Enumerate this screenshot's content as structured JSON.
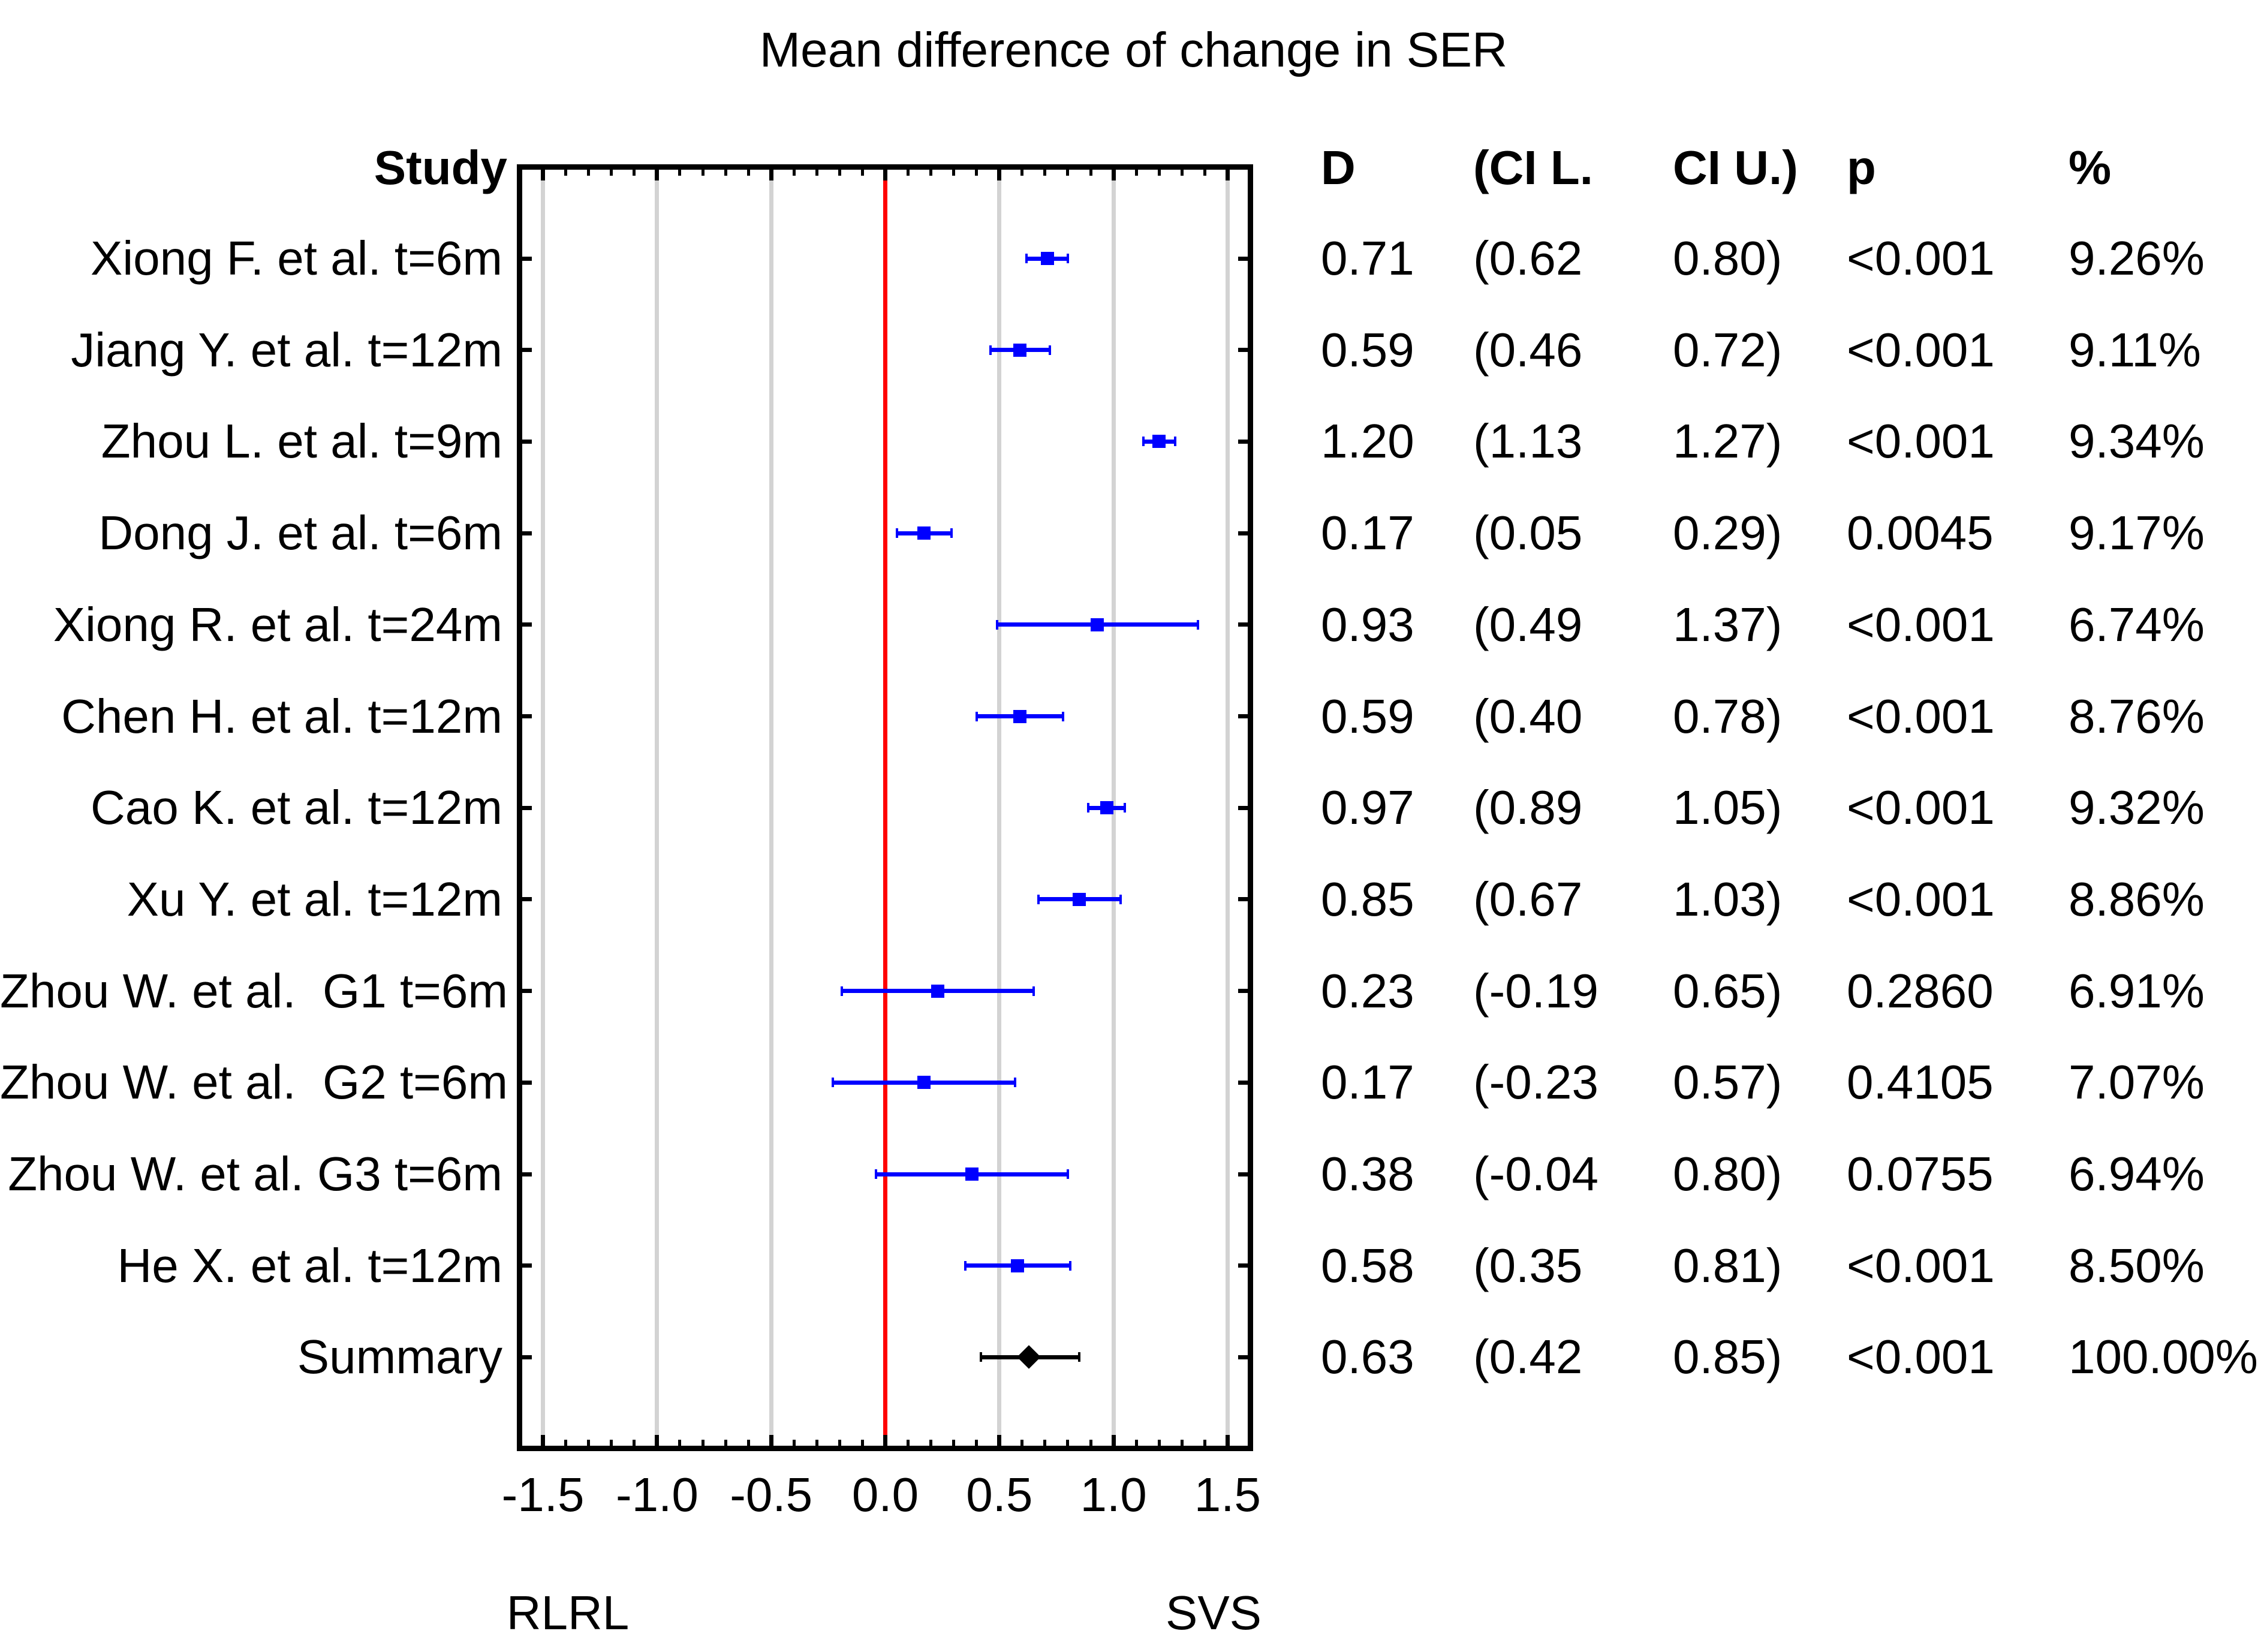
{
  "title": "Mean difference of change in SER",
  "table": {
    "study_header": "Study",
    "columns": [
      "D",
      "(CI L.",
      "CI U.)",
      "p",
      "%"
    ]
  },
  "axis": {
    "tick_labels": [
      "-1.5",
      "-1.0",
      "-0.5",
      "0.0",
      "0.5",
      "1.0",
      "1.5"
    ],
    "tick_values": [
      -1.5,
      -1.0,
      -0.5,
      0.0,
      0.5,
      1.0,
      1.5
    ],
    "left_label": "RLRL",
    "right_label": "SVS"
  },
  "colors": {
    "study_marker": "#0000ff",
    "summary_marker": "#000000",
    "zero_line": "#ff0000",
    "gridline": "#d3d3d3"
  },
  "chart_data": {
    "type": "forest",
    "title": "Mean difference of change in SER",
    "x_range": [
      -1.59,
      1.59
    ],
    "zero_line": 0.0,
    "grid": true,
    "studies": [
      {
        "label": "Xiong F. et al. t=6m",
        "d": 0.71,
        "lo": 0.62,
        "hi": 0.8,
        "d_text": "0.71",
        "lo_text": "(0.62",
        "hi_text": "0.80)",
        "p_text": "<0.001",
        "weight_text": "9.26%",
        "summary": false
      },
      {
        "label": "Jiang Y. et al. t=12m",
        "d": 0.59,
        "lo": 0.46,
        "hi": 0.72,
        "d_text": "0.59",
        "lo_text": "(0.46",
        "hi_text": "0.72)",
        "p_text": "<0.001",
        "weight_text": "9.11%",
        "summary": false
      },
      {
        "label": "Zhou L. et al. t=9m",
        "d": 1.2,
        "lo": 1.13,
        "hi": 1.27,
        "d_text": "1.20",
        "lo_text": "(1.13",
        "hi_text": "1.27)",
        "p_text": "<0.001",
        "weight_text": "9.34%",
        "summary": false
      },
      {
        "label": "Dong J. et al. t=6m",
        "d": 0.17,
        "lo": 0.05,
        "hi": 0.29,
        "d_text": "0.17",
        "lo_text": "(0.05",
        "hi_text": "0.29)",
        "p_text": "0.0045",
        "weight_text": "9.17%",
        "summary": false
      },
      {
        "label": "Xiong R. et al. t=24m",
        "d": 0.93,
        "lo": 0.49,
        "hi": 1.37,
        "d_text": "0.93",
        "lo_text": "(0.49",
        "hi_text": "1.37)",
        "p_text": "<0.001",
        "weight_text": "6.74%",
        "summary": false
      },
      {
        "label": "Chen H. et al. t=12m",
        "d": 0.59,
        "lo": 0.4,
        "hi": 0.78,
        "d_text": "0.59",
        "lo_text": "(0.40",
        "hi_text": "0.78)",
        "p_text": "<0.001",
        "weight_text": "8.76%",
        "summary": false
      },
      {
        "label": "Cao K. et al. t=12m",
        "d": 0.97,
        "lo": 0.89,
        "hi": 1.05,
        "d_text": "0.97",
        "lo_text": "(0.89",
        "hi_text": "1.05)",
        "p_text": "<0.001",
        "weight_text": "9.32%",
        "summary": false
      },
      {
        "label": "Xu Y. et al. t=12m",
        "d": 0.85,
        "lo": 0.67,
        "hi": 1.03,
        "d_text": "0.85",
        "lo_text": "(0.67",
        "hi_text": "1.03)",
        "p_text": "<0.001",
        "weight_text": "8.86%",
        "summary": false
      },
      {
        "label": "Zhou W. et al.  G1 t=6m",
        "d": 0.23,
        "lo": -0.19,
        "hi": 0.65,
        "d_text": "0.23",
        "lo_text": "(-0.19",
        "hi_text": "0.65)",
        "p_text": "0.2860",
        "weight_text": "6.91%",
        "summary": false
      },
      {
        "label": "Zhou W. et al.  G2 t=6m",
        "d": 0.17,
        "lo": -0.23,
        "hi": 0.57,
        "d_text": "0.17",
        "lo_text": "(-0.23",
        "hi_text": "0.57)",
        "p_text": "0.4105",
        "weight_text": "7.07%",
        "summary": false
      },
      {
        "label": "Zhou W. et al. G3 t=6m",
        "d": 0.38,
        "lo": -0.04,
        "hi": 0.8,
        "d_text": "0.38",
        "lo_text": "(-0.04",
        "hi_text": "0.80)",
        "p_text": "0.0755",
        "weight_text": "6.94%",
        "summary": false
      },
      {
        "label": "He X. et al. t=12m",
        "d": 0.58,
        "lo": 0.35,
        "hi": 0.81,
        "d_text": "0.58",
        "lo_text": "(0.35",
        "hi_text": "0.81)",
        "p_text": "<0.001",
        "weight_text": "8.50%",
        "summary": false
      },
      {
        "label": "Summary",
        "d": 0.63,
        "lo": 0.42,
        "hi": 0.85,
        "d_text": "0.63",
        "lo_text": "(0.42",
        "hi_text": "0.85)",
        "p_text": "<0.001",
        "weight_text": "100.00%",
        "summary": true
      }
    ]
  }
}
